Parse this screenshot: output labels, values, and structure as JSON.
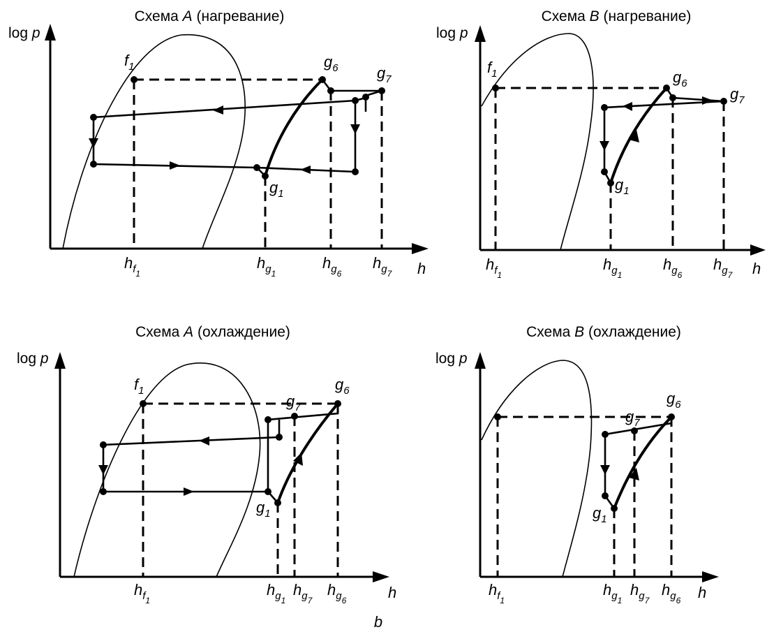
{
  "figure_label": "b",
  "panels": [
    {
      "title_prefix": "Схема ",
      "title_scheme": "A",
      "title_suffix": " (нагревание)",
      "y_axis": {
        "log": "log",
        "p": "p"
      },
      "x_axis": "h",
      "points": {
        "f1": "f",
        "g1": "g",
        "g6": "g",
        "g7": "g"
      },
      "ticks": {
        "hf1": "h",
        "hg1": "h",
        "hg6": "h",
        "hg7": "h"
      },
      "sub": {
        "one": "1",
        "six": "6",
        "seven": "7",
        "f": "f",
        "g": "g"
      }
    },
    {
      "title_prefix": "Схема ",
      "title_scheme": "B",
      "title_suffix": " (нагревание)",
      "y_axis": {
        "log": "log",
        "p": "p"
      },
      "x_axis": "h",
      "points": {
        "f1": "f",
        "g1": "g",
        "g6": "g",
        "g7": "g"
      },
      "ticks": {
        "hf1": "h",
        "hg1": "h",
        "hg6": "h",
        "hg7": "h"
      },
      "sub": {
        "one": "1",
        "six": "6",
        "seven": "7",
        "f": "f",
        "g": "g"
      }
    },
    {
      "title_prefix": "Схема ",
      "title_scheme": "A",
      "title_suffix": " (охлаждение)",
      "y_axis": {
        "log": "log",
        "p": "p"
      },
      "x_axis": "h",
      "points": {
        "f1": "f",
        "g1": "g",
        "g6": "g",
        "g7": "g"
      },
      "ticks": {
        "hf1": "h",
        "hg1": "h",
        "hg7": "h",
        "hg6": "h"
      },
      "sub": {
        "one": "1",
        "six": "6",
        "seven": "7",
        "f": "f",
        "g": "g"
      }
    },
    {
      "title_prefix": "Схема ",
      "title_scheme": "B",
      "title_suffix": " (охлаждение)",
      "y_axis": {
        "log": "log",
        "p": "p"
      },
      "x_axis": "h",
      "points": {
        "f1": "f",
        "g1": "g",
        "g6": "g",
        "g7": "g"
      },
      "ticks": {
        "hf1": "h",
        "hg1": "h",
        "hg7": "h",
        "hg6": "h"
      },
      "sub": {
        "one": "1",
        "six": "6",
        "seven": "7",
        "f": "f",
        "g": "g"
      }
    }
  ]
}
